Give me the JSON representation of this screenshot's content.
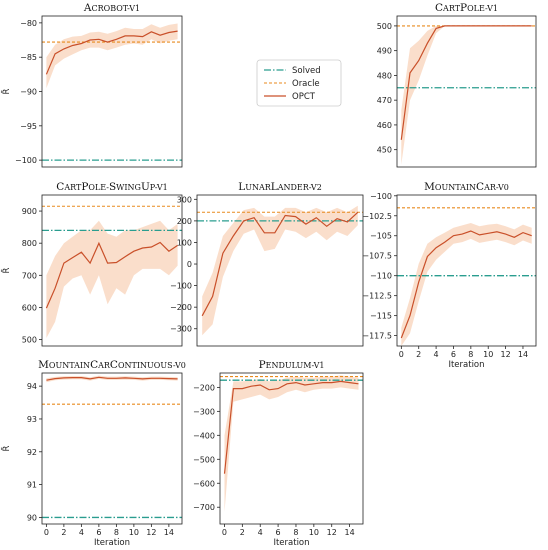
{
  "colors": {
    "solved": "#2a9d8f",
    "oracle": "#e88a1e",
    "opct": "#c9502a",
    "band": "#f6c8a8"
  },
  "legend": {
    "items": [
      {
        "key": "solved",
        "label": "Solved"
      },
      {
        "key": "oracle",
        "label": "Oracle"
      },
      {
        "key": "opct",
        "label": "OPCT"
      }
    ]
  },
  "chart_data": [
    {
      "id": "acrobot",
      "type": "line",
      "title": "Acrobot-v1",
      "xlabel": "",
      "ylabel": "R̄",
      "xlim": [
        -0.5,
        15.5
      ],
      "ylim": [
        -101,
        -79
      ],
      "yticks": [
        -100,
        -95,
        -90,
        -85,
        -80
      ],
      "xticks": [],
      "solved": -100,
      "oracle": -82.8,
      "x": [
        0,
        1,
        2,
        3,
        4,
        5,
        6,
        7,
        8,
        9,
        10,
        11,
        12,
        13,
        14,
        15
      ],
      "y": [
        -87.5,
        -84.5,
        -83.8,
        -83.3,
        -83.0,
        -82.5,
        -82.4,
        -82.8,
        -82.4,
        -81.9,
        -81.9,
        -82.0,
        -81.3,
        -81.8,
        -81.4,
        -81.2
      ],
      "y_lower": [
        -89.5,
        -86.2,
        -85.2,
        -84.6,
        -84.0,
        -83.6,
        -83.6,
        -84.0,
        -83.6,
        -83.2,
        -83.0,
        -83.2,
        -82.4,
        -83.0,
        -82.6,
        -82.4
      ],
      "y_upper": [
        -85.0,
        -83.2,
        -82.4,
        -82.0,
        -81.9,
        -81.4,
        -81.3,
        -81.6,
        -81.2,
        -80.7,
        -80.9,
        -80.9,
        -80.2,
        -80.7,
        -80.3,
        -80.1
      ]
    },
    {
      "id": "cartpole",
      "type": "line",
      "title": "CartPole-v1",
      "xlabel": "",
      "ylabel": "",
      "xlim": [
        -0.5,
        15.5
      ],
      "ylim": [
        443,
        504
      ],
      "yticks": [
        450,
        460,
        470,
        480,
        490,
        500
      ],
      "xticks": [],
      "solved": 475,
      "oracle": 500,
      "x": [
        0,
        1,
        2,
        3,
        4,
        5,
        6,
        7,
        8,
        9,
        10,
        11,
        12,
        13,
        14,
        15
      ],
      "y": [
        454,
        481,
        486,
        493,
        499,
        500,
        500,
        500,
        500,
        500,
        500,
        500,
        500,
        500,
        500,
        500
      ],
      "y_lower": [
        444,
        470,
        478,
        488,
        497,
        500,
        500,
        500,
        500,
        500,
        500,
        500,
        500,
        500,
        500,
        500
      ],
      "y_upper": [
        466,
        491,
        494,
        498,
        500,
        500,
        500,
        500,
        500,
        500,
        500,
        500,
        500,
        500,
        500,
        500
      ]
    },
    {
      "id": "cartpole_swingup",
      "type": "line",
      "title": "CartPole-SwingUp-v1",
      "xlabel": "",
      "ylabel": "R̄",
      "xlim": [
        -0.5,
        15.5
      ],
      "ylim": [
        480,
        950
      ],
      "yticks": [
        500,
        600,
        700,
        800,
        900
      ],
      "xticks": [],
      "solved": 840,
      "oracle": 915,
      "x": [
        0,
        1,
        2,
        3,
        4,
        5,
        6,
        7,
        8,
        9,
        10,
        11,
        12,
        13,
        14,
        15
      ],
      "y": [
        598,
        660,
        738,
        755,
        772,
        738,
        800,
        738,
        740,
        758,
        775,
        785,
        788,
        802,
        775,
        793
      ],
      "y_lower": [
        505,
        555,
        665,
        690,
        700,
        640,
        700,
        610,
        660,
        640,
        700,
        720,
        720,
        720,
        700,
        730
      ],
      "y_upper": [
        700,
        760,
        800,
        820,
        840,
        840,
        870,
        830,
        820,
        840,
        840,
        850,
        860,
        870,
        840,
        860
      ]
    },
    {
      "id": "lunarlander",
      "type": "line",
      "title": "LunarLander-v2",
      "xlabel": "",
      "ylabel": "",
      "xlim": [
        -0.5,
        15.5
      ],
      "ylim": [
        -380,
        320
      ],
      "yticks": [
        -300,
        -200,
        -100,
        0,
        100,
        200,
        300
      ],
      "xticks": [],
      "solved": 200,
      "oracle": 240,
      "x": [
        0,
        1,
        2,
        3,
        4,
        5,
        6,
        7,
        8,
        9,
        10,
        11,
        12,
        13,
        14,
        15
      ],
      "y": [
        -240,
        -150,
        50,
        130,
        200,
        215,
        145,
        145,
        225,
        220,
        185,
        215,
        175,
        210,
        195,
        240
      ],
      "y_lower": [
        -330,
        -280,
        -60,
        60,
        140,
        160,
        60,
        70,
        160,
        150,
        120,
        150,
        110,
        150,
        130,
        180
      ],
      "y_upper": [
        -150,
        -40,
        130,
        190,
        250,
        260,
        220,
        220,
        260,
        260,
        240,
        260,
        240,
        260,
        240,
        270
      ]
    },
    {
      "id": "mountaincar",
      "type": "line",
      "title": "MountainCar-v0",
      "xlabel": "Iteration",
      "ylabel": "",
      "xlim": [
        -0.5,
        15.5
      ],
      "ylim": [
        -118.8,
        -99.9
      ],
      "yticks": [
        -117.5,
        -115.0,
        -112.5,
        -110.0,
        -107.5,
        -105.0,
        -102.5,
        -100.0
      ],
      "xticks": [
        0,
        2,
        4,
        6,
        8,
        10,
        12,
        14
      ],
      "solved": -110,
      "oracle": -101.5,
      "x": [
        0,
        1,
        2,
        3,
        4,
        5,
        6,
        7,
        8,
        9,
        10,
        11,
        12,
        13,
        14,
        15
      ],
      "y": [
        -117.8,
        -115.0,
        -110.8,
        -107.6,
        -106.5,
        -105.8,
        -105.0,
        -104.8,
        -104.4,
        -104.9,
        -104.7,
        -104.5,
        -104.8,
        -105.2,
        -104.6,
        -105.0
      ],
      "y_lower": [
        -118.8,
        -117.2,
        -113.2,
        -109.5,
        -108.0,
        -107.0,
        -106.0,
        -105.8,
        -105.4,
        -105.9,
        -105.7,
        -105.5,
        -105.8,
        -106.2,
        -105.6,
        -106.0
      ],
      "y_upper": [
        -116.5,
        -112.8,
        -108.5,
        -106.0,
        -105.2,
        -104.6,
        -104.0,
        -103.7,
        -103.4,
        -103.8,
        -103.6,
        -103.5,
        -103.8,
        -104.2,
        -103.6,
        -104.0
      ]
    },
    {
      "id": "mountaincar_continuous",
      "type": "line",
      "title": "MountainCarContinuous-v0",
      "xlabel": "Iteration",
      "ylabel": "R̄",
      "xlim": [
        -0.5,
        15.5
      ],
      "ylim": [
        89.8,
        94.4
      ],
      "yticks": [
        90,
        91,
        92,
        93,
        94
      ],
      "xticks": [
        0,
        2,
        4,
        6,
        8,
        10,
        12,
        14
      ],
      "solved": 90,
      "oracle": 93.45,
      "x": [
        0,
        1,
        2,
        3,
        4,
        5,
        6,
        7,
        8,
        9,
        10,
        11,
        12,
        13,
        14,
        15
      ],
      "y": [
        94.18,
        94.23,
        94.25,
        94.26,
        94.26,
        94.22,
        94.27,
        94.24,
        94.24,
        94.25,
        94.24,
        94.22,
        94.24,
        94.24,
        94.23,
        94.22
      ],
      "y_lower": [
        94.12,
        94.18,
        94.2,
        94.21,
        94.21,
        94.17,
        94.22,
        94.19,
        94.19,
        94.2,
        94.19,
        94.17,
        94.19,
        94.19,
        94.18,
        94.17
      ],
      "y_upper": [
        94.24,
        94.28,
        94.3,
        94.31,
        94.31,
        94.27,
        94.32,
        94.29,
        94.29,
        94.3,
        94.29,
        94.27,
        94.29,
        94.29,
        94.28,
        94.27
      ]
    },
    {
      "id": "pendulum",
      "type": "line",
      "title": "Pendulum-v1",
      "xlabel": "Iteration",
      "ylabel": "",
      "xlim": [
        -0.5,
        15.5
      ],
      "ylim": [
        -770,
        -140
      ],
      "yticks": [
        -700,
        -600,
        -500,
        -400,
        -300,
        -200
      ],
      "xticks": [
        0,
        2,
        4,
        6,
        8,
        10,
        12,
        14
      ],
      "solved": -170,
      "oracle": -155,
      "x": [
        0,
        1,
        2,
        3,
        4,
        5,
        6,
        7,
        8,
        9,
        10,
        11,
        12,
        13,
        14,
        15
      ],
      "y": [
        -560,
        -205,
        -205,
        -195,
        -190,
        -210,
        -205,
        -185,
        -180,
        -190,
        -185,
        -180,
        -180,
        -175,
        -180,
        -185
      ],
      "y_lower": [
        -720,
        -260,
        -250,
        -240,
        -230,
        -250,
        -240,
        -220,
        -210,
        -220,
        -210,
        -205,
        -205,
        -200,
        -205,
        -210
      ],
      "y_upper": [
        -400,
        -175,
        -175,
        -170,
        -165,
        -175,
        -170,
        -160,
        -155,
        -160,
        -160,
        -155,
        -155,
        -150,
        -155,
        -160
      ]
    }
  ]
}
